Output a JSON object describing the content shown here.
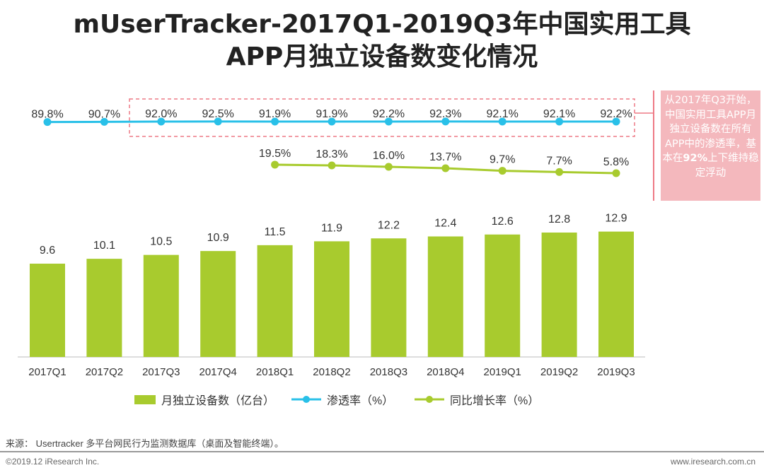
{
  "chart_data": {
    "type": "bar+line",
    "title_line1": "mUserTracker-2017Q1-2019Q3年中国实用工具",
    "title_line2": "APP月独立设备数变化情况",
    "categories": [
      "2017Q1",
      "2017Q2",
      "2017Q3",
      "2017Q4",
      "2018Q1",
      "2018Q2",
      "2018Q3",
      "2018Q4",
      "2019Q1",
      "2019Q2",
      "2019Q3"
    ],
    "series": [
      {
        "name": "月独立设备数（亿台）",
        "type": "bar",
        "color": "#a8cb2e",
        "values": [
          9.6,
          10.1,
          10.5,
          10.9,
          11.5,
          11.9,
          12.2,
          12.4,
          12.6,
          12.8,
          12.9
        ],
        "labels": [
          "9.6",
          "10.1",
          "10.5",
          "10.9",
          "11.5",
          "11.9",
          "12.2",
          "12.4",
          "12.6",
          "12.8",
          "12.9"
        ]
      },
      {
        "name": "渗透率（%）",
        "type": "line",
        "color": "#29c0e8",
        "values": [
          89.8,
          90.7,
          92.0,
          92.5,
          91.9,
          91.9,
          92.2,
          92.3,
          92.1,
          92.1,
          92.2
        ],
        "labels": [
          "89.8%",
          "90.7%",
          "92.0%",
          "92.5%",
          "91.9%",
          "91.9%",
          "92.2%",
          "92.3%",
          "92.1%",
          "92.1%",
          "92.2%"
        ]
      },
      {
        "name": "同比增长率（%）",
        "type": "line",
        "color": "#a8cb2e",
        "values": [
          null,
          null,
          null,
          null,
          19.5,
          18.3,
          16.0,
          13.7,
          9.7,
          7.7,
          5.8
        ],
        "labels": [
          null,
          null,
          null,
          null,
          "19.5%",
          "18.3%",
          "16.0%",
          "13.7%",
          "9.7%",
          "7.7%",
          "5.8%"
        ]
      }
    ],
    "annotation": "从2017年Q3开始，中国实用工具APP月独立设备数在所有APP中的渗透率，基本在92%上下维持稳定浮动"
  },
  "note": {
    "pre": "从2017年Q3开始，中国实用工具APP月独立设备数在所有APP中的渗透率，基本在",
    "bold": "92%",
    "post": "上下维持稳定浮动"
  },
  "footer": {
    "source": "来源： Usertracker 多平台网民行为监测数据库（桌面及智能终端）。",
    "copyright": "©2019.12 iResearch Inc.",
    "website": "www.iresearch.com.cn"
  }
}
